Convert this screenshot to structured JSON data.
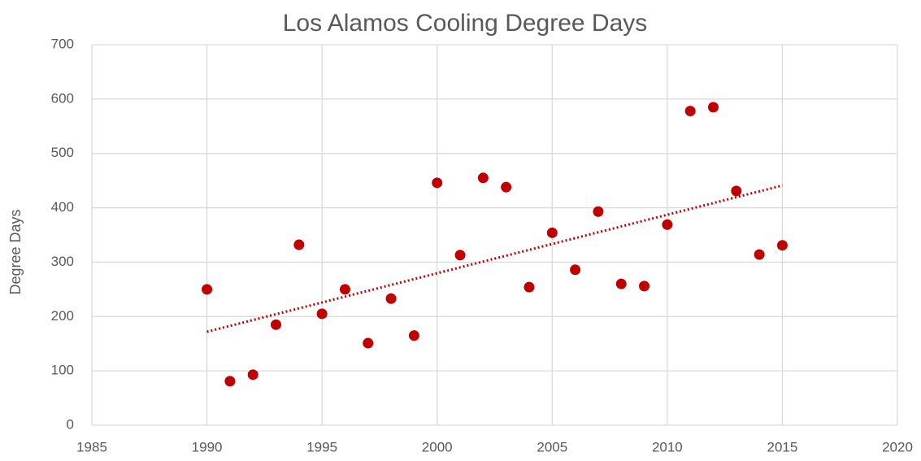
{
  "chart_data": {
    "type": "scatter",
    "title": "Los Alamos Cooling Degree Days",
    "y_label": "Degree Days",
    "series": [
      {
        "name": "Cooling Degree Days",
        "color": "#c00000",
        "x": [
          1990,
          1991,
          1992,
          1993,
          1994,
          1995,
          1996,
          1997,
          1998,
          1999,
          2000,
          2001,
          2002,
          2003,
          2004,
          2005,
          2006,
          2007,
          2008,
          2009,
          2010,
          2011,
          2012,
          2013,
          2014,
          2015
        ],
        "values": [
          250,
          81,
          93,
          185,
          332,
          205,
          250,
          151,
          233,
          165,
          446,
          313,
          455,
          438,
          254,
          354,
          286,
          393,
          260,
          256,
          369,
          578,
          585,
          431,
          314,
          331
        ]
      }
    ],
    "trendline": {
      "color": "#c00000",
      "x": [
        1990,
        2015
      ],
      "values": [
        172,
        441
      ]
    },
    "xlim": [
      1985,
      2020
    ],
    "xticks": [
      1985,
      1990,
      1995,
      2000,
      2005,
      2010,
      2015,
      2020
    ],
    "ylim": [
      0,
      700
    ],
    "yticks": [
      0,
      100,
      200,
      300,
      400,
      500,
      600,
      700
    ],
    "grid": true
  }
}
